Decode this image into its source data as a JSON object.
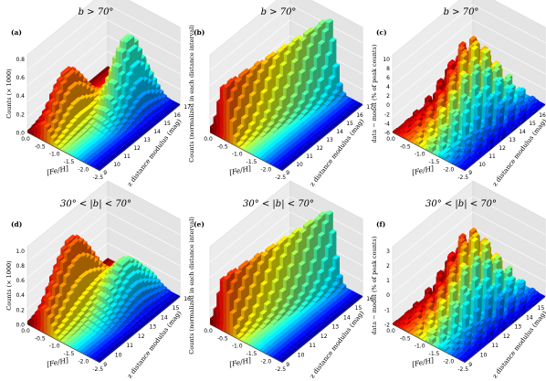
{
  "chart_data": [
    {
      "type": "bar3d",
      "panel_label": "(a)",
      "title": "b > 70°",
      "xlabel": "[Fe/H]",
      "ylabel": "z distance modulus (mag)",
      "zlabel": "Counts (× 1000)",
      "x_ticks": [
        "0.0",
        "-0.5",
        "-1.0",
        "-1.5",
        "-2.0",
        "-2.5"
      ],
      "y_ticks": [
        "9",
        "10",
        "11",
        "12",
        "13",
        "14",
        "15",
        "16",
        "17"
      ],
      "z_ticks": [
        "0.0",
        "0.2",
        "0.4",
        "0.6",
        "0.8"
      ],
      "x_range": [
        0.0,
        -2.5
      ],
      "y_range": [
        9,
        17
      ],
      "z_range": [
        0.0,
        0.9
      ],
      "peaks": [
        {
          "feh": -0.5,
          "dm": 12.0,
          "value": 0.65
        },
        {
          "feh": -1.35,
          "dm": 15.5,
          "value": 0.88
        }
      ]
    },
    {
      "type": "bar3d",
      "panel_label": "(b)",
      "title": "b > 70°",
      "xlabel": "[Fe/H]",
      "ylabel": "z distance modulus (mag)",
      "zlabel": "Counts (normalized in each distance interval)",
      "x_ticks": [
        "0.0",
        "-0.5",
        "-1.0",
        "-1.5",
        "-2.0",
        "-2.5"
      ],
      "y_ticks": [
        "9",
        "10",
        "11",
        "12",
        "13",
        "14",
        "15",
        "16",
        "17"
      ],
      "z_ticks": [],
      "x_range": [
        0.0,
        -2.5
      ],
      "y_range": [
        9,
        17
      ],
      "peaks": [
        {
          "feh": -0.5,
          "dm": 10.5,
          "value": 1.0
        },
        {
          "feh": -1.4,
          "dm": 16.0,
          "value": 1.0
        }
      ]
    },
    {
      "type": "bar3d",
      "panel_label": "(c)",
      "title": "b > 70°",
      "xlabel": "[Fe/H]",
      "ylabel": "z distance modulus (mag)",
      "zlabel": "data − model (% of peak counts)",
      "x_ticks": [
        "0.0",
        "-0.5",
        "-1.0",
        "-1.5",
        "-2.0",
        "-2.5"
      ],
      "y_ticks": [
        "9",
        "10",
        "11",
        "12",
        "13",
        "14",
        "15",
        "16",
        "17"
      ],
      "z_ticks": [
        "-6",
        "-4",
        "-2",
        "0",
        "2",
        "4",
        "6",
        "8",
        "10"
      ],
      "x_range": [
        0.0,
        -2.5
      ],
      "y_range": [
        9,
        17
      ],
      "z_range": [
        -6,
        10
      ]
    },
    {
      "type": "bar3d",
      "panel_label": "(d)",
      "title": "30° < |b| < 70°",
      "xlabel": "[Fe/H]",
      "ylabel": "z distance modulus (mag)",
      "zlabel": "Counts (× 1000)",
      "x_ticks": [
        "0.0",
        "-0.5",
        "-1.0",
        "-1.5",
        "-2.0",
        "-2.5"
      ],
      "y_ticks": [
        "9",
        "10",
        "11",
        "12",
        "13",
        "14",
        "15",
        "16"
      ],
      "z_ticks": [
        "0.0",
        "0.2",
        "0.4",
        "0.6",
        "0.8",
        "1.0"
      ],
      "x_range": [
        0.0,
        -2.5
      ],
      "y_range": [
        9,
        16
      ],
      "z_range": [
        0.0,
        1.1
      ],
      "peaks": [
        {
          "feh": -0.45,
          "dm": 11.5,
          "value": 1.0
        },
        {
          "feh": -1.3,
          "dm": 14.5,
          "value": 0.7
        }
      ]
    },
    {
      "type": "bar3d",
      "panel_label": "(e)",
      "title": "30° < |b| < 70°",
      "xlabel": "[Fe/H]",
      "ylabel": "z distance modulus (mag)",
      "zlabel": "Counts (normalized in each distance interval)",
      "x_ticks": [
        "0.0",
        "-0.5",
        "-1.0",
        "-1.5",
        "-2.0",
        "-2.5"
      ],
      "y_ticks": [
        "9",
        "10",
        "11",
        "12",
        "13",
        "14",
        "15",
        "16"
      ],
      "z_ticks": [],
      "x_range": [
        0.0,
        -2.5
      ],
      "y_range": [
        9,
        16
      ],
      "peaks": [
        {
          "feh": -0.5,
          "dm": 10.5,
          "value": 1.0
        },
        {
          "feh": -1.3,
          "dm": 15.5,
          "value": 1.0
        }
      ]
    },
    {
      "type": "bar3d",
      "panel_label": "(f)",
      "title": "30° < |b| < 70°",
      "xlabel": "[Fe/H]",
      "ylabel": "z distance modulus (mag)",
      "zlabel": "data − model (% of peak counts)",
      "x_ticks": [
        "0.0",
        "-0.5",
        "-1.0",
        "-1.5",
        "-2.0",
        "-2.5"
      ],
      "y_ticks": [
        "9",
        "10",
        "11",
        "12",
        "13",
        "14",
        "15",
        "16"
      ],
      "z_ticks": [
        "-2",
        "-1",
        "0",
        "1",
        "2",
        "3"
      ],
      "x_range": [
        0.0,
        -2.5
      ],
      "y_range": [
        9,
        16
      ],
      "z_range": [
        -2,
        3
      ]
    }
  ]
}
